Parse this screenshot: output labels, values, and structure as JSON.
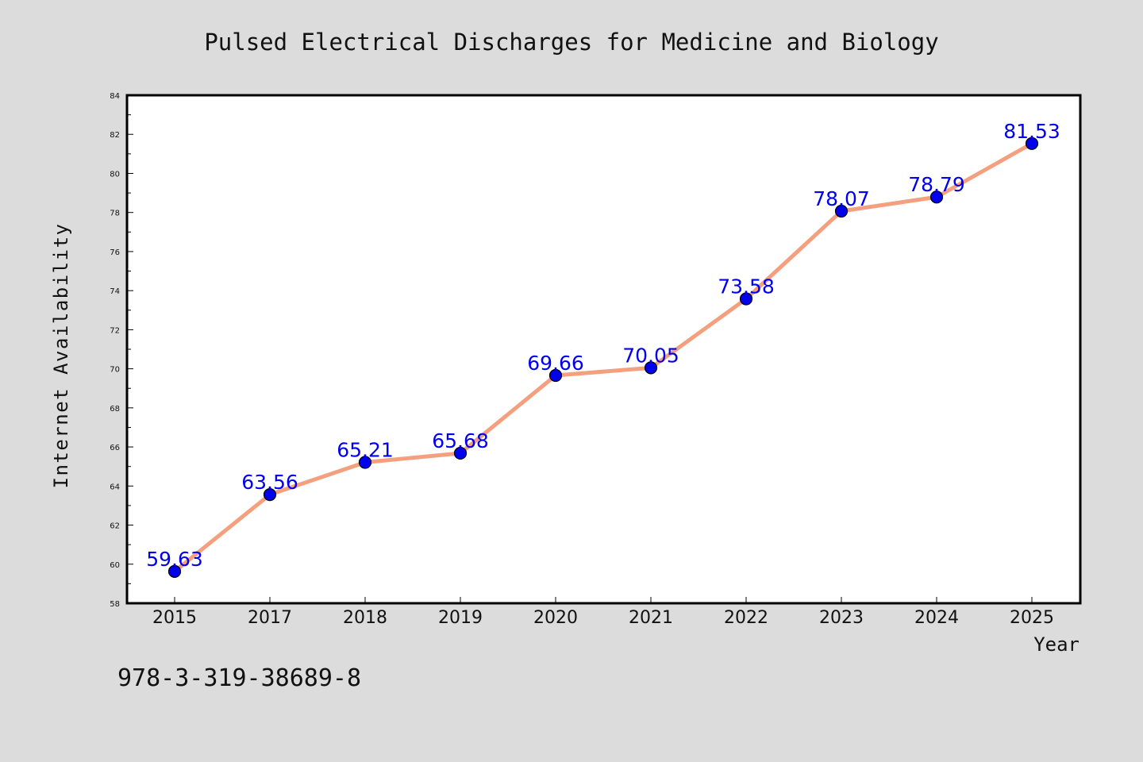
{
  "chart_data": {
    "type": "line",
    "title": "Pulsed Electrical Discharges for Medicine and Biology",
    "xlabel": "Year",
    "ylabel": "Internet Availability",
    "categories": [
      "2015",
      "2017",
      "2018",
      "2019",
      "2020",
      "2021",
      "2022",
      "2023",
      "2024",
      "2025"
    ],
    "values": [
      59.63,
      63.56,
      65.21,
      65.68,
      69.66,
      70.05,
      73.58,
      78.07,
      78.79,
      81.53
    ],
    "data_labels": [
      "59.63",
      "63.56",
      "65.21",
      "65.68",
      "69.66",
      "70.05",
      "73.58",
      "78.07",
      "78.79",
      "81.53"
    ],
    "ylim": [
      58,
      84
    ],
    "yticks": [
      "58",
      "60",
      "62",
      "64",
      "66",
      "68",
      "70",
      "72",
      "74",
      "76",
      "78",
      "80",
      "82",
      "84"
    ],
    "grid": false,
    "line_color": "#f4a07e",
    "marker_color": "#0000ee",
    "label_color": "#0000ee",
    "background": "#dcdcdc",
    "plot_background": "#ffffff"
  },
  "footer": {
    "isbn": "978-3-319-38689-8"
  }
}
